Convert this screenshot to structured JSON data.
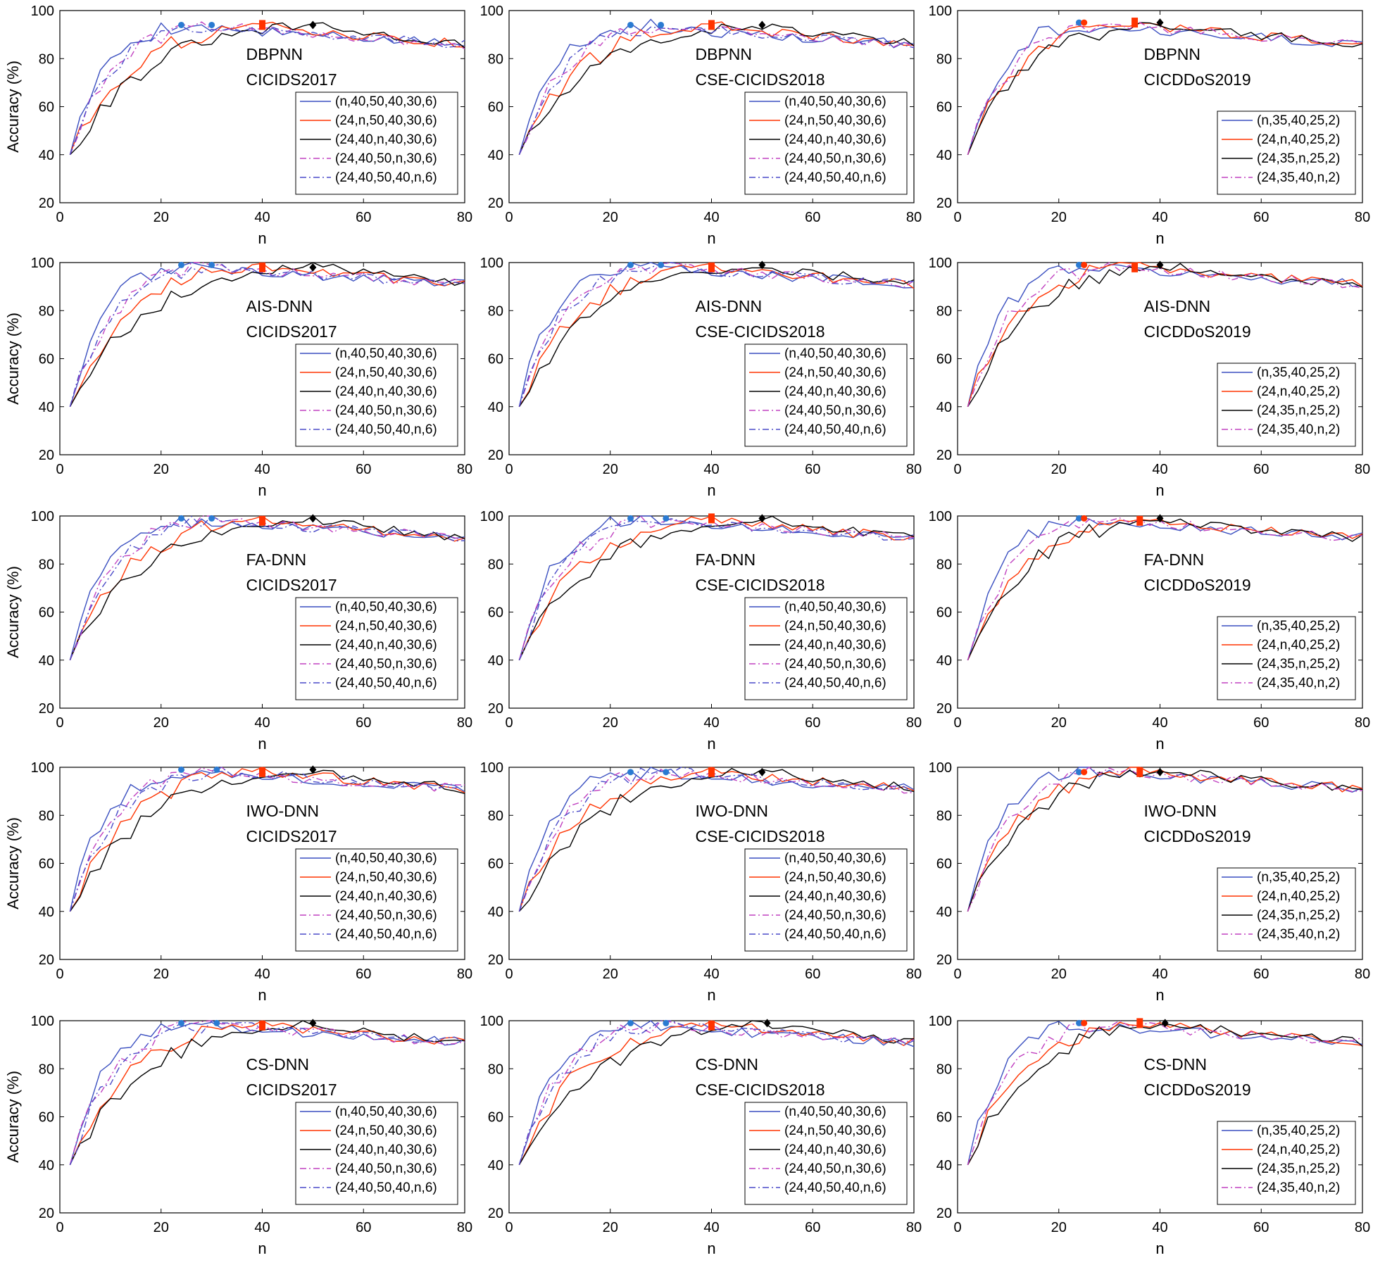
{
  "figure": {
    "ylabel": "Accuracy (%)",
    "xlabel": "n",
    "xlim": [
      0,
      80
    ],
    "ylim": [
      20,
      100
    ],
    "xticks": [
      0,
      20,
      40,
      60,
      80
    ],
    "yticks": [
      20,
      40,
      60,
      80,
      100
    ]
  },
  "styles": {
    "s1": {
      "color": "#3a4fc0",
      "dash": "solid"
    },
    "s2": {
      "color": "#ff3300",
      "dash": "solid"
    },
    "s3": {
      "color": "#000000",
      "dash": "solid"
    },
    "s4": {
      "color": "#c040c0",
      "dash": "dashdot"
    },
    "s5": {
      "color": "#4a4ac8",
      "dash": "dashdot"
    }
  },
  "legend_sets": {
    "ids": [
      "(n,40,50,40,30,6)",
      "(24,n,50,40,30,6)",
      "(24,40,n,40,30,6)",
      "(24,40,50,n,30,6)",
      "(24,40,50,40,n,6)"
    ],
    "ddos": [
      "(n,35,40,25,2)",
      "(24,n,40,25,2)",
      "(24,35,n,25,2)",
      "(24,35,40,n,2)"
    ]
  },
  "chart_data": [
    {
      "type": "line",
      "method": "DBPNN",
      "dataset": "CICIDS2017",
      "legend": "ids",
      "curve": {
        "start": 40,
        "k1": 5.5,
        "k2": 5.5,
        "peak": 94,
        "tail": 86
      },
      "optima": [
        {
          "series": 0,
          "n": 24,
          "acc": 94
        },
        {
          "series": 4,
          "n": 30,
          "acc": 94
        },
        {
          "series": 1,
          "n": 40,
          "acc": 94
        },
        {
          "series": 2,
          "n": 50,
          "acc": 94
        }
      ]
    },
    {
      "type": "line",
      "method": "DBPNN",
      "dataset": "CSE-CICIDS2018",
      "legend": "ids",
      "curve": {
        "start": 40,
        "k1": 6.5,
        "k2": 6.5,
        "peak": 94,
        "tail": 86
      },
      "optima": [
        {
          "series": 0,
          "n": 24,
          "acc": 94
        },
        {
          "series": 4,
          "n": 30,
          "acc": 94
        },
        {
          "series": 1,
          "n": 40,
          "acc": 94
        },
        {
          "series": 2,
          "n": 50,
          "acc": 94
        }
      ]
    },
    {
      "type": "line",
      "method": "DBPNN",
      "dataset": "CICDDoS2019",
      "legend": "ddos",
      "curve": {
        "start": 40,
        "k1": 7.5,
        "k2": 7.5,
        "peak": 95,
        "tail": 86
      },
      "optima": [
        {
          "series": 0,
          "n": 24,
          "acc": 95
        },
        {
          "series": 1,
          "n": 25,
          "acc": 95
        },
        {
          "series": 1,
          "n": 35,
          "acc": 95
        },
        {
          "series": 2,
          "n": 40,
          "acc": 95
        }
      ]
    },
    {
      "type": "line",
      "method": "AIS-DNN",
      "dataset": "CICIDS2017",
      "legend": "ids",
      "curve": {
        "start": 40,
        "k1": 7,
        "k2": 9,
        "peak": 99,
        "tail": 91
      },
      "optima": [
        {
          "series": 0,
          "n": 24,
          "acc": 99
        },
        {
          "series": 4,
          "n": 30,
          "acc": 99
        },
        {
          "series": 1,
          "n": 40,
          "acc": 98
        },
        {
          "series": 2,
          "n": 50,
          "acc": 98
        }
      ]
    },
    {
      "type": "line",
      "method": "AIS-DNN",
      "dataset": "CSE-CICIDS2018",
      "legend": "ids",
      "curve": {
        "start": 40,
        "k1": 7,
        "k2": 9,
        "peak": 99,
        "tail": 91
      },
      "optima": [
        {
          "series": 0,
          "n": 24,
          "acc": 99
        },
        {
          "series": 4,
          "n": 30,
          "acc": 99
        },
        {
          "series": 1,
          "n": 40,
          "acc": 98
        },
        {
          "series": 2,
          "n": 50,
          "acc": 99
        }
      ]
    },
    {
      "type": "line",
      "method": "AIS-DNN",
      "dataset": "CICDDoS2019",
      "legend": "ddos",
      "curve": {
        "start": 40,
        "k1": 7,
        "k2": 9,
        "peak": 99,
        "tail": 91
      },
      "optima": [
        {
          "series": 0,
          "n": 24,
          "acc": 99
        },
        {
          "series": 1,
          "n": 25,
          "acc": 99
        },
        {
          "series": 1,
          "n": 35,
          "acc": 98
        },
        {
          "series": 2,
          "n": 40,
          "acc": 99
        }
      ]
    },
    {
      "type": "line",
      "method": "FA-DNN",
      "dataset": "CICIDS2017",
      "legend": "ids",
      "curve": {
        "start": 40,
        "k1": 7,
        "k2": 9,
        "peak": 99,
        "tail": 91
      },
      "optima": [
        {
          "series": 0,
          "n": 24,
          "acc": 99
        },
        {
          "series": 4,
          "n": 30,
          "acc": 99
        },
        {
          "series": 1,
          "n": 40,
          "acc": 98
        },
        {
          "series": 2,
          "n": 50,
          "acc": 99
        }
      ]
    },
    {
      "type": "line",
      "method": "FA-DNN",
      "dataset": "CSE-CICIDS2018",
      "legend": "ids",
      "curve": {
        "start": 40,
        "k1": 7,
        "k2": 9,
        "peak": 99,
        "tail": 91
      },
      "optima": [
        {
          "series": 0,
          "n": 24,
          "acc": 99
        },
        {
          "series": 4,
          "n": 31,
          "acc": 99
        },
        {
          "series": 1,
          "n": 40,
          "acc": 99
        },
        {
          "series": 2,
          "n": 50,
          "acc": 99
        }
      ]
    },
    {
      "type": "line",
      "method": "FA-DNN",
      "dataset": "CICDDoS2019",
      "legend": "ddos",
      "curve": {
        "start": 40,
        "k1": 7,
        "k2": 9,
        "peak": 99,
        "tail": 91
      },
      "optima": [
        {
          "series": 0,
          "n": 24,
          "acc": 99
        },
        {
          "series": 1,
          "n": 25,
          "acc": 99
        },
        {
          "series": 1,
          "n": 36,
          "acc": 98
        },
        {
          "series": 2,
          "n": 40,
          "acc": 99
        }
      ]
    },
    {
      "type": "line",
      "method": "IWO-DNN",
      "dataset": "CICIDS2017",
      "legend": "ids",
      "curve": {
        "start": 40,
        "k1": 7,
        "k2": 9,
        "peak": 99,
        "tail": 91
      },
      "optima": [
        {
          "series": 0,
          "n": 24,
          "acc": 99
        },
        {
          "series": 4,
          "n": 31,
          "acc": 99
        },
        {
          "series": 1,
          "n": 40,
          "acc": 98
        },
        {
          "series": 2,
          "n": 50,
          "acc": 99
        }
      ]
    },
    {
      "type": "line",
      "method": "IWO-DNN",
      "dataset": "CSE-CICIDS2018",
      "legend": "ids",
      "curve": {
        "start": 40,
        "k1": 7,
        "k2": 9,
        "peak": 99,
        "tail": 91
      },
      "optima": [
        {
          "series": 0,
          "n": 24,
          "acc": 98
        },
        {
          "series": 4,
          "n": 31,
          "acc": 98
        },
        {
          "series": 1,
          "n": 40,
          "acc": 98
        },
        {
          "series": 2,
          "n": 50,
          "acc": 98
        }
      ]
    },
    {
      "type": "line",
      "method": "IWO-DNN",
      "dataset": "CICDDoS2019",
      "legend": "ddos",
      "curve": {
        "start": 40,
        "k1": 7,
        "k2": 9,
        "peak": 99,
        "tail": 91
      },
      "optima": [
        {
          "series": 0,
          "n": 24,
          "acc": 98
        },
        {
          "series": 1,
          "n": 25,
          "acc": 98
        },
        {
          "series": 1,
          "n": 36,
          "acc": 98
        },
        {
          "series": 2,
          "n": 40,
          "acc": 98
        }
      ]
    },
    {
      "type": "line",
      "method": "CS-DNN",
      "dataset": "CICIDS2017",
      "legend": "ids",
      "curve": {
        "start": 40,
        "k1": 7,
        "k2": 9,
        "peak": 99,
        "tail": 91
      },
      "optima": [
        {
          "series": 0,
          "n": 24,
          "acc": 99
        },
        {
          "series": 4,
          "n": 31,
          "acc": 99
        },
        {
          "series": 1,
          "n": 40,
          "acc": 98
        },
        {
          "series": 2,
          "n": 50,
          "acc": 99
        }
      ]
    },
    {
      "type": "line",
      "method": "CS-DNN",
      "dataset": "CSE-CICIDS2018",
      "legend": "ids",
      "curve": {
        "start": 40,
        "k1": 7,
        "k2": 9,
        "peak": 99,
        "tail": 91
      },
      "optima": [
        {
          "series": 0,
          "n": 24,
          "acc": 99
        },
        {
          "series": 4,
          "n": 31,
          "acc": 99
        },
        {
          "series": 1,
          "n": 40,
          "acc": 98
        },
        {
          "series": 2,
          "n": 51,
          "acc": 99
        }
      ]
    },
    {
      "type": "line",
      "method": "CS-DNN",
      "dataset": "CICDDoS2019",
      "legend": "ddos",
      "curve": {
        "start": 40,
        "k1": 7,
        "k2": 9,
        "peak": 99,
        "tail": 91
      },
      "optima": [
        {
          "series": 0,
          "n": 24,
          "acc": 99
        },
        {
          "series": 1,
          "n": 25,
          "acc": 99
        },
        {
          "series": 1,
          "n": 36,
          "acc": 99
        },
        {
          "series": 2,
          "n": 41,
          "acc": 99
        }
      ]
    }
  ]
}
